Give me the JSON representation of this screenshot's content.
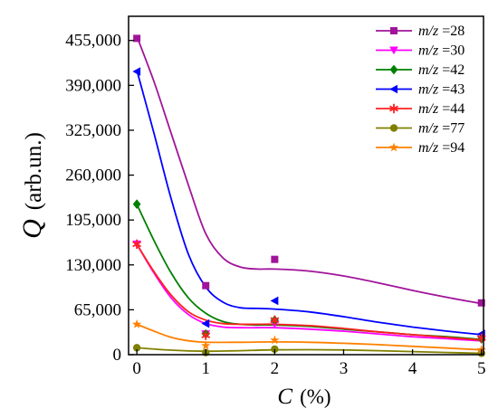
{
  "chart_data": {
    "type": "scatter",
    "title": "",
    "xlabel_symbol": "C",
    "xlabel_unit": "(%)",
    "ylabel_symbol": "Q",
    "ylabel_unit": "(arb.un.)",
    "xlim": [
      -0.12,
      5.03
    ],
    "ylim": [
      0,
      490000
    ],
    "xticks": [
      0,
      1,
      2,
      3,
      4,
      5
    ],
    "xtick_labels": [
      "0",
      "1",
      "2",
      "3",
      "4",
      "5"
    ],
    "yticks": [
      0,
      65000,
      130000,
      195000,
      260000,
      325000,
      390000,
      455000
    ],
    "ytick_labels": [
      "0",
      "65,000",
      "130,000",
      "195,000",
      "260,000",
      "325,000",
      "390,000",
      "455,000"
    ],
    "legend_position": "top-right",
    "x": [
      0,
      1,
      2,
      5
    ],
    "series": [
      {
        "name": "m/z =28",
        "name_ital": "m/z",
        "name_rest": " =28",
        "marker": "square",
        "color": "#A0149A",
        "values": [
          458000,
          100000,
          138000,
          75000
        ],
        "fit_x": [
          0,
          0.25,
          0.5,
          0.75,
          1,
          1.25,
          1.5,
          1.75,
          2,
          2.5,
          3,
          3.5,
          4,
          4.5,
          5
        ],
        "fit_y": [
          461000,
          395000,
          320000,
          245000,
          175000,
          140000,
          127000,
          124000,
          124000,
          121000,
          114000,
          104000,
          93000,
          83000,
          74000
        ]
      },
      {
        "name": "m/z =30",
        "name_ital": "m/z",
        "name_rest": " =30",
        "marker": "triangle-down",
        "color": "#FF00FF",
        "values": [
          160000,
          30000,
          45000,
          22000
        ],
        "fit_x": [
          0,
          0.25,
          0.5,
          0.75,
          1,
          1.25,
          1.5,
          1.75,
          2,
          2.5,
          3,
          3.5,
          4,
          4.5,
          5
        ],
        "fit_y": [
          160000,
          118000,
          82000,
          58000,
          45000,
          40000,
          39000,
          39000,
          39000,
          37000,
          34000,
          30000,
          26000,
          23000,
          20000
        ]
      },
      {
        "name": "m/z =42",
        "name_ital": "m/z",
        "name_rest": " =42",
        "marker": "diamond",
        "color": "#008000",
        "values": [
          218000,
          30000,
          50000,
          23000
        ],
        "fit_x": [
          0,
          0.25,
          0.5,
          0.75,
          1,
          1.25,
          1.5,
          1.75,
          2,
          2.5,
          3,
          3.5,
          4,
          4.5,
          5
        ],
        "fit_y": [
          218000,
          165000,
          118000,
          82000,
          60000,
          48000,
          44000,
          43000,
          43000,
          41000,
          37000,
          33000,
          29000,
          26000,
          22000
        ]
      },
      {
        "name": "m/z =43",
        "name_ital": "m/z",
        "name_rest": " =43",
        "marker": "triangle-left",
        "color": "#0000FF",
        "values": [
          410000,
          45000,
          78000,
          30000
        ],
        "fit_x": [
          0,
          0.25,
          0.5,
          0.75,
          1,
          1.25,
          1.5,
          1.75,
          2,
          2.5,
          3,
          3.5,
          4,
          4.5,
          5
        ],
        "fit_y": [
          412000,
          320000,
          225000,
          145000,
          98000,
          76000,
          68000,
          67000,
          66000,
          62000,
          55000,
          47000,
          40000,
          34000,
          29000
        ]
      },
      {
        "name": "m/z =44",
        "name_ital": "m/z",
        "name_rest": " =44",
        "marker": "asterisk",
        "color": "#FF2020",
        "values": [
          160000,
          28000,
          50000,
          24000
        ],
        "fit_x": [
          0,
          0.25,
          0.5,
          0.75,
          1,
          1.25,
          1.5,
          1.75,
          2,
          2.5,
          3,
          3.5,
          4,
          4.5,
          5
        ],
        "fit_y": [
          160000,
          120000,
          86000,
          62000,
          50000,
          45000,
          44000,
          44000,
          44000,
          42000,
          38000,
          33000,
          29000,
          25000,
          21000
        ]
      },
      {
        "name": "m/z =77",
        "name_ital": "m/z",
        "name_rest": " =77",
        "marker": "circle",
        "color": "#808000",
        "values": [
          10000,
          3000,
          8000,
          2000
        ],
        "fit_x": [
          0,
          0.5,
          1,
          1.5,
          2,
          2.5,
          3,
          3.5,
          4,
          4.5,
          5
        ],
        "fit_y": [
          10000,
          6500,
          5000,
          5800,
          7000,
          7200,
          6800,
          5800,
          4500,
          3200,
          2000
        ]
      },
      {
        "name": "m/z =94",
        "name_ital": "m/z",
        "name_rest": " =94",
        "marker": "star",
        "color": "#FF8000",
        "values": [
          44000,
          13000,
          21000,
          7000
        ],
        "fit_x": [
          0,
          0.25,
          0.5,
          0.75,
          1,
          1.5,
          2,
          2.5,
          3,
          3.5,
          4,
          4.5,
          5
        ],
        "fit_y": [
          44000,
          34000,
          25000,
          20000,
          18000,
          18000,
          18500,
          18000,
          16500,
          14500,
          12000,
          9500,
          7000
        ]
      }
    ]
  }
}
